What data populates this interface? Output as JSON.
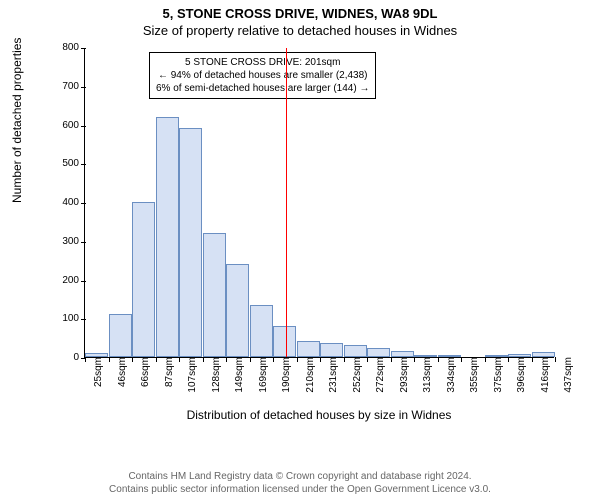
{
  "title_main": "5, STONE CROSS DRIVE, WIDNES, WA8 9DL",
  "title_sub": "Size of property relative to detached houses in Widnes",
  "y_axis_label": "Number of detached properties",
  "x_axis_label": "Distribution of detached houses by size in Widnes",
  "footer_line1": "Contains HM Land Registry data © Crown copyright and database right 2024.",
  "footer_line2": "Contains public sector information licensed under the Open Government Licence v3.0.",
  "callout_line1": "5 STONE CROSS DRIVE: 201sqm",
  "callout_line2": "← 94% of detached houses are smaller (2,438)",
  "callout_line3": "6% of semi-detached houses are larger (144) →",
  "chart": {
    "type": "histogram",
    "ylim": [
      0,
      800
    ],
    "ytick_step": 100,
    "x_start": 25,
    "x_step": 20.6,
    "x_ticks": [
      "25sqm",
      "46sqm",
      "66sqm",
      "87sqm",
      "107sqm",
      "128sqm",
      "149sqm",
      "169sqm",
      "190sqm",
      "210sqm",
      "231sqm",
      "252sqm",
      "272sqm",
      "293sqm",
      "313sqm",
      "334sqm",
      "355sqm",
      "375sqm",
      "396sqm",
      "416sqm",
      "437sqm"
    ],
    "values": [
      10,
      110,
      400,
      620,
      590,
      320,
      240,
      135,
      80,
      42,
      35,
      30,
      22,
      15,
      5,
      2,
      0,
      2,
      8,
      12
    ],
    "bar_fill": "#d6e1f4",
    "bar_stroke": "#6b8fc2",
    "marker_value": 201,
    "marker_color": "#ff0000",
    "background_color": "#ffffff",
    "text_color": "#000000"
  }
}
